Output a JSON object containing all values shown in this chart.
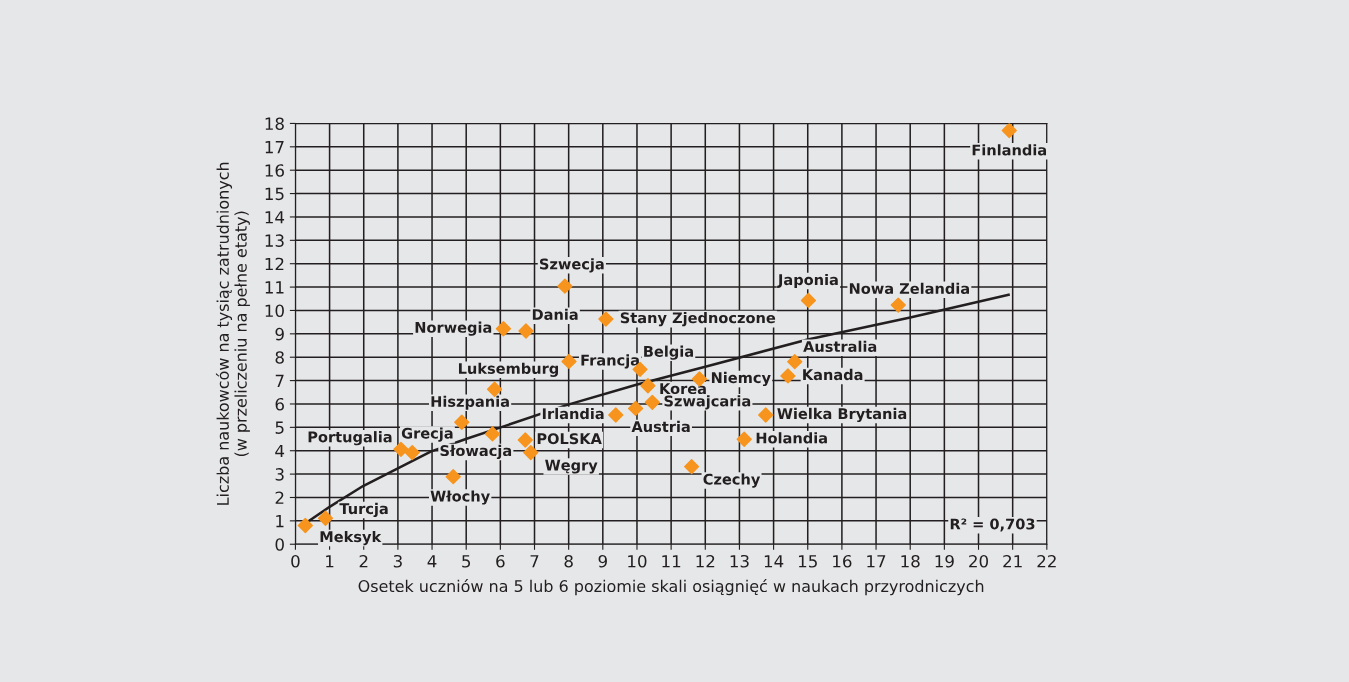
{
  "chart_data": {
    "type": "scatter",
    "xlabel": "Osetek uczniów na 5 lub 6 poziomie skali osiągnięć w naukach przyrodniczych",
    "ylabel": "Liczba naukowców na tysiąc zatrudnionych\n(w przeliczeniu na pełne etaty)",
    "xlim": [
      0,
      22
    ],
    "xticks": [
      0,
      1,
      2,
      3,
      4,
      5,
      6,
      7,
      8,
      9,
      10,
      11,
      12,
      13,
      14,
      15,
      16,
      17,
      18,
      19,
      20,
      21,
      22
    ],
    "ylim": [
      0,
      18
    ],
    "yticks": [
      0,
      1,
      2,
      3,
      4,
      5,
      6,
      7,
      8,
      9,
      10,
      11,
      12,
      13,
      14,
      15,
      16,
      17,
      18
    ],
    "grid": true,
    "series": [
      {
        "type": "scatter",
        "marker": "diamond",
        "color": "#f7941d",
        "x": [
          20.9,
          15.02,
          17.65,
          14.62,
          14.42,
          11.83,
          10.09,
          10.32,
          10.45,
          9.96,
          9.38,
          13.77,
          13.14,
          11.6,
          9.09,
          7.89,
          6.75,
          6.09,
          8.01,
          5.83,
          4.87,
          3.09,
          3.42,
          5.77,
          6.73,
          6.89,
          4.62,
          0.88,
          0.29
        ],
        "values": [
          17.7,
          10.43,
          10.23,
          7.81,
          7.2,
          7.07,
          7.48,
          6.78,
          6.07,
          5.81,
          5.53,
          5.53,
          4.49,
          3.32,
          9.63,
          11.04,
          9.12,
          9.22,
          7.82,
          6.63,
          5.22,
          4.06,
          3.92,
          4.72,
          4.46,
          3.92,
          2.89,
          1.11,
          0.8
        ]
      },
      {
        "type": "line",
        "color": "#231f20",
        "line_style": "solid",
        "x": [
          0.37,
          1,
          1.98,
          3.96,
          4.99,
          5.99,
          7.96,
          9.98,
          12.0,
          15.0,
          18.0,
          20.88
        ],
        "values": [
          0.97,
          1.6,
          2.49,
          3.96,
          4.5,
          4.99,
          5.96,
          6.82,
          7.59,
          8.76,
          9.7,
          10.67
        ]
      }
    ],
    "annotations": [
      {
        "text": "Finlandia",
        "x": 20.9,
        "y": 17.7
      },
      {
        "text": "Japonia",
        "x": 15.02,
        "y": 10.43
      },
      {
        "text": "Nowa Zelandia",
        "x": 17.65,
        "y": 10.23
      },
      {
        "text": "Australia",
        "x": 14.62,
        "y": 7.81
      },
      {
        "text": "Kanada",
        "x": 14.42,
        "y": 7.2
      },
      {
        "text": "Niemcy",
        "x": 11.83,
        "y": 7.07
      },
      {
        "text": "Belgia",
        "x": 10.09,
        "y": 7.48
      },
      {
        "text": "Korea",
        "x": 10.32,
        "y": 6.78
      },
      {
        "text": "Szwajcaria",
        "x": 10.45,
        "y": 6.07
      },
      {
        "text": "Austria",
        "x": 9.96,
        "y": 5.81
      },
      {
        "text": "Irlandia",
        "x": 9.38,
        "y": 5.53
      },
      {
        "text": "Wielka Brytania",
        "x": 13.77,
        "y": 5.53
      },
      {
        "text": "Holandia",
        "x": 13.14,
        "y": 4.49
      },
      {
        "text": "Czechy",
        "x": 11.6,
        "y": 3.32
      },
      {
        "text": "Stany Zjednoczone",
        "x": 9.09,
        "y": 9.63
      },
      {
        "text": "Szwecja",
        "x": 7.89,
        "y": 11.04
      },
      {
        "text": "Dania",
        "x": 6.75,
        "y": 9.12
      },
      {
        "text": "Norwegia",
        "x": 6.09,
        "y": 9.22
      },
      {
        "text": "Francja",
        "x": 8.01,
        "y": 7.82
      },
      {
        "text": "Luksemburg",
        "x": 5.83,
        "y": 6.63
      },
      {
        "text": "Hiszpania",
        "x": 4.87,
        "y": 5.22
      },
      {
        "text": "Portugalia",
        "x": 3.09,
        "y": 4.06
      },
      {
        "text": "Grecja",
        "x": 3.42,
        "y": 3.92
      },
      {
        "text": "Słowacja",
        "x": 5.77,
        "y": 4.72
      },
      {
        "text": "POLSKA",
        "x": 6.73,
        "y": 4.46
      },
      {
        "text": "Węgry",
        "x": 6.89,
        "y": 3.92
      },
      {
        "text": "Włochy",
        "x": 4.62,
        "y": 2.89
      },
      {
        "text": "Turcja",
        "x": 0.88,
        "y": 1.11
      },
      {
        "text": "Meksyk",
        "x": 0.29,
        "y": 0.8
      },
      "R² = 0,703"
    ]
  }
}
